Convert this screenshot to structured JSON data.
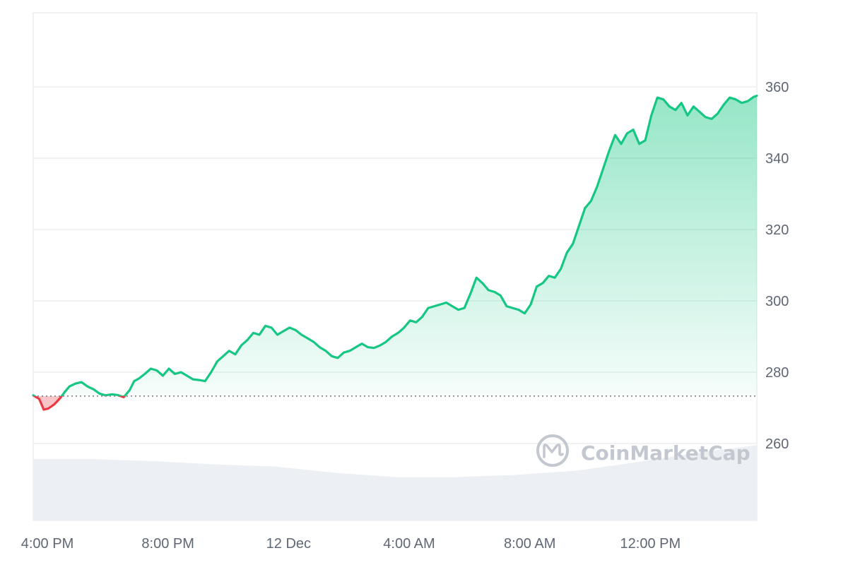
{
  "chart_data": {
    "type": "area",
    "title": "",
    "xlabel": "",
    "ylabel": "",
    "ylim": [
      240,
      380
    ],
    "y_ticks": [
      260,
      280,
      300,
      320,
      340,
      360
    ],
    "x_ticks": [
      {
        "t": 0,
        "label": "4:00 PM"
      },
      {
        "t": 4,
        "label": "8:00 PM"
      },
      {
        "t": 8,
        "label": "12 Dec"
      },
      {
        "t": 12,
        "label": "4:00 AM"
      },
      {
        "t": 16,
        "label": "8:00 AM"
      },
      {
        "t": 20,
        "label": "12:00 PM"
      }
    ],
    "x_unit": "hours from 4:00 PM",
    "baseline": 273.3,
    "grid": true,
    "legend": "none",
    "colors": {
      "up": "#16c784",
      "down": "#ea3943",
      "volume": "#eceff3",
      "grid": "#eceef1",
      "baseline": "#7a7f88"
    },
    "series": [
      {
        "x": [
          0,
          0.2,
          0.35,
          0.5,
          0.7,
          0.9,
          1.05,
          1.2,
          1.4,
          1.6,
          1.8,
          2.0,
          2.2,
          2.4,
          2.6,
          2.8,
          3.0,
          3.2,
          3.35,
          3.5,
          3.7,
          3.9,
          4.1,
          4.3,
          4.5,
          4.7,
          4.9,
          5.1,
          5.3,
          5.5,
          5.7,
          5.9,
          6.1,
          6.3,
          6.5,
          6.7,
          6.9,
          7.1,
          7.3,
          7.5,
          7.7,
          7.9,
          8.1,
          8.3,
          8.5,
          8.7,
          8.9,
          9.1,
          9.3,
          9.5,
          9.7,
          9.9,
          10.1,
          10.3,
          10.5,
          10.7,
          10.9,
          11.1,
          11.3,
          11.5,
          11.7,
          11.9,
          12.1,
          12.3,
          12.5,
          12.7,
          12.9,
          13.1,
          13.3,
          13.5,
          13.7,
          13.9,
          14.1,
          14.3,
          14.5,
          14.7,
          14.9,
          15.1,
          15.3,
          15.5,
          15.7,
          15.9,
          16.1,
          16.3,
          16.5,
          16.7,
          16.9,
          17.1,
          17.3,
          17.5,
          17.7,
          17.9,
          18.1,
          18.3,
          18.5,
          18.7,
          18.9,
          19.1,
          19.3,
          19.5,
          19.7,
          19.9,
          20.1,
          20.3,
          20.5,
          20.7,
          20.9,
          21.1,
          21.3,
          21.5,
          21.7,
          21.9,
          22.1,
          22.3,
          22.5,
          22.7,
          22.9,
          23.1,
          23.3,
          23.5,
          23.7,
          23.9,
          24.0
        ],
        "values": [
          273.5,
          272.5,
          269.5,
          269.8,
          271.0,
          272.8,
          274.5,
          276.0,
          276.8,
          277.2,
          276.0,
          275.2,
          274.0,
          273.5,
          273.8,
          273.6,
          273.0,
          275.0,
          277.5,
          278.2,
          279.5,
          281.0,
          280.5,
          279.0,
          281.0,
          279.5,
          280.0,
          279.0,
          278.0,
          277.8,
          277.5,
          280.0,
          283.0,
          284.5,
          286.0,
          285.0,
          287.5,
          289.0,
          291.0,
          290.5,
          293.0,
          292.5,
          290.5,
          291.5,
          292.5,
          291.8,
          290.5,
          289.5,
          288.5,
          287.0,
          286.0,
          284.5,
          284.0,
          285.5,
          286.0,
          287.0,
          288.0,
          287.0,
          286.8,
          287.5,
          288.5,
          290.0,
          291.0,
          292.5,
          294.5,
          294.0,
          295.5,
          298.0,
          298.5,
          299.0,
          299.5,
          298.5,
          297.5,
          298.0,
          302.0,
          306.5,
          305.0,
          303.0,
          302.5,
          301.5,
          298.5,
          298.0,
          297.5,
          296.5,
          299.0,
          304.0,
          305.0,
          307.0,
          306.5,
          309.0,
          313.5,
          316.0,
          321.0,
          326.0,
          328.0,
          332.0,
          337.0,
          342.0,
          346.5,
          344.0,
          347.0,
          348.0,
          344.0,
          345.0,
          352.0,
          357.0,
          356.5,
          354.5,
          353.5,
          355.5,
          352.0,
          354.5,
          353.0,
          351.5,
          351.0,
          352.5,
          355.0,
          357.0,
          356.5,
          355.5,
          356.0,
          357.2,
          357.5
        ]
      }
    ],
    "volume": {
      "x": [
        0,
        2,
        4,
        6,
        8,
        10,
        11,
        12,
        14,
        16,
        18,
        20,
        22,
        24
      ],
      "values": [
        0.58,
        0.58,
        0.56,
        0.53,
        0.51,
        0.45,
        0.43,
        0.41,
        0.41,
        0.43,
        0.47,
        0.55,
        0.64,
        0.71
      ]
    },
    "watermark": "CoinMarketCap"
  }
}
